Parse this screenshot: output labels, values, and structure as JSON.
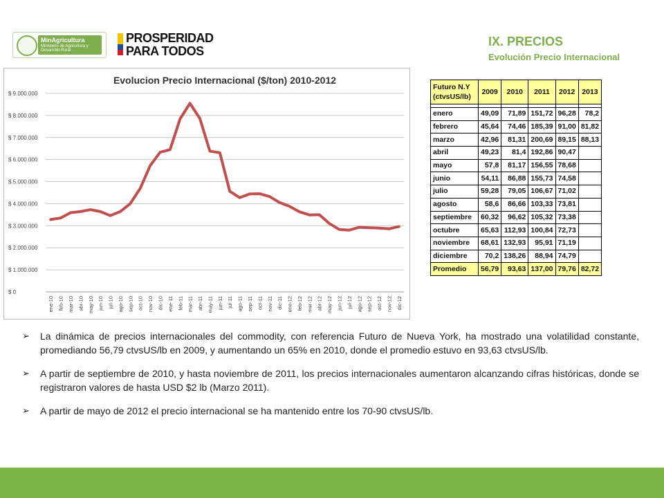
{
  "logos": {
    "ministry_name": "MinAgricultura",
    "ministry_sub": "Ministerio de Agricultura y Desarrollo Rural",
    "slogan_line1": "PROSPERIDAD",
    "slogan_line2": "PARA TODOS"
  },
  "header": {
    "title": "IX. PRECIOS",
    "subtitle": "Evolución Precio Internacional"
  },
  "colors": {
    "accent": "#7fae4e",
    "series": "#c0504d",
    "footer": "#7ab648",
    "table_highlight": "#ffff99"
  },
  "chart_data": {
    "type": "line",
    "title": "Evolucion Precio Internacional ($/ton) 2010-2012",
    "xlabel": "",
    "ylabel": "",
    "ylim": [
      0,
      9000000
    ],
    "y_ticks": [
      "$ 0",
      "$ 1.000.000",
      "$ 2.000.000",
      "$ 3.000.000",
      "$ 4.000.000",
      "$ 5.000.000",
      "$ 6.000.000",
      "$ 7.000.000",
      "$ 8.000.000",
      "$ 9.000.000"
    ],
    "grid": true,
    "categories": [
      "ene-10",
      "feb-10",
      "mar-10",
      "abr-10",
      "may-10",
      "jun-10",
      "jul-10",
      "ago-10",
      "sep-10",
      "oct-10",
      "nov-10",
      "dic-10",
      "ene-11",
      "feb-11",
      "mar-11",
      "abr-11",
      "may-11",
      "jun-11",
      "jul-11",
      "ago-11",
      "sep-11",
      "oct-11",
      "nov-11",
      "dic-11",
      "ene-12",
      "feb-12",
      "mar-12",
      "abr-12",
      "may-12",
      "jun-12",
      "jul-12",
      "ago-12",
      "sep-12",
      "oct-12",
      "nov-12",
      "dic-12"
    ],
    "series": [
      {
        "values": [
          3280000,
          3350000,
          3590000,
          3640000,
          3730000,
          3640000,
          3460000,
          3640000,
          4000000,
          4690000,
          5720000,
          6330000,
          6450000,
          7840000,
          8550000,
          7860000,
          6380000,
          6310000,
          4560000,
          4270000,
          4440000,
          4450000,
          4320000,
          4050000,
          3880000,
          3630000,
          3490000,
          3500000,
          3100000,
          2830000,
          2800000,
          2930000,
          2910000,
          2890000,
          2860000,
          2960000
        ]
      }
    ]
  },
  "table": {
    "header_label": "Futuro N.Y (ctvsUS/lb)",
    "years": [
      "2009",
      "2010",
      "2011",
      "2012",
      "2013"
    ],
    "rows": [
      {
        "month": "enero",
        "values": [
          "49,09",
          "71,89",
          "151,72",
          "96,28",
          "78,2"
        ]
      },
      {
        "month": "febrero",
        "values": [
          "45,64",
          "74,46",
          "185,39",
          "91,00",
          "81,82"
        ]
      },
      {
        "month": "marzo",
        "values": [
          "42,96",
          "81,31",
          "200,69",
          "89,15",
          "88,13"
        ]
      },
      {
        "month": "abril",
        "values": [
          "49,23",
          "81,4",
          "192,86",
          "90,47",
          ""
        ]
      },
      {
        "month": "mayo",
        "values": [
          "57,8",
          "81,17",
          "156,55",
          "78,68",
          ""
        ]
      },
      {
        "month": "junio",
        "values": [
          "54,11",
          "86,88",
          "155,73",
          "74,58",
          ""
        ]
      },
      {
        "month": "julio",
        "values": [
          "59,28",
          "79,05",
          "106,67",
          "71,02",
          ""
        ]
      },
      {
        "month": "agosto",
        "values": [
          "58,6",
          "86,66",
          "103,33",
          "73,81",
          ""
        ]
      },
      {
        "month": "septiembre",
        "values": [
          "60,32",
          "96,62",
          "105,32",
          "73,38",
          ""
        ]
      },
      {
        "month": "octubre",
        "values": [
          "65,63",
          "112,93",
          "100,84",
          "72,73",
          ""
        ]
      },
      {
        "month": "noviembre",
        "values": [
          "68,61",
          "132,93",
          "95,91",
          "71,19",
          ""
        ]
      },
      {
        "month": "diciembre",
        "values": [
          "70,2",
          "138,26",
          "88,94",
          "74,79",
          ""
        ]
      }
    ],
    "average": {
      "label": "Promedio",
      "values": [
        "56,79",
        "93,63",
        "137,00",
        "79,76",
        "82,72"
      ]
    }
  },
  "bullets": [
    "La dinámica de precios internacionales del commodity, con referencia Futuro de Nueva York, ha mostrado una volatilidad constante, promediando 56,79 ctvsUS/lb en 2009, y aumentando un 65% en 2010, donde el promedio estuvo en 93,63 ctvsUS/lb.",
    "A partir de septiembre de 2010, y hasta noviembre de 2011, los precios internacionales aumentaron alcanzando cifras históricas, donde se registraron valores de hasta USD $2 lb (Marzo 2011).",
    "A partir de mayo de 2012 el precio internacional se ha mantenido entre los 70-90 ctvsUS/lb."
  ]
}
